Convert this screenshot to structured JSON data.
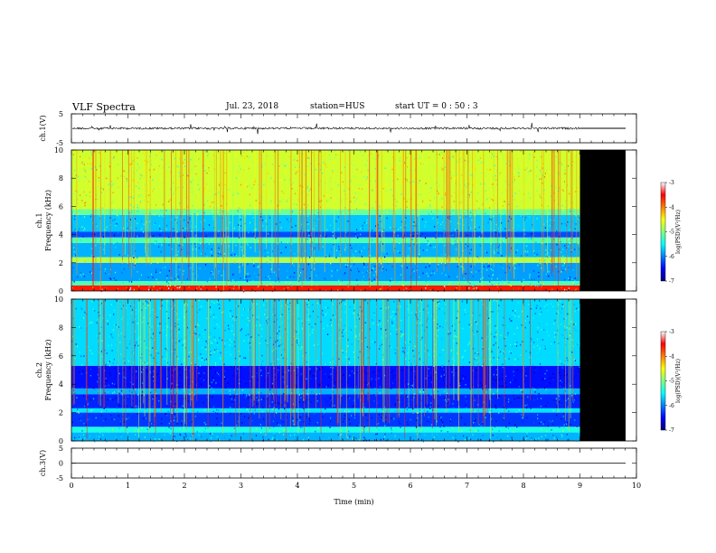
{
  "header": {
    "title": "VLF Spectra",
    "date": "Jul. 23, 2018",
    "station": "station=HUS",
    "start_ut": "start UT =  0 : 50 : 3"
  },
  "colors": {
    "cmap": [
      "#00007f",
      "#0000ff",
      "#0080ff",
      "#00ffff",
      "#80ff80",
      "#ffff00",
      "#ff8000",
      "#ff0000",
      "#ffffff"
    ],
    "nodata": "#000000"
  },
  "chart_data": [
    {
      "type": "line",
      "panel": "ch1-waveform",
      "ylabel": "ch.1(V)",
      "ylim": [
        -5,
        5
      ],
      "yticks": [
        "5",
        "-5"
      ],
      "xlim": [
        0,
        10
      ],
      "baseline": 0,
      "data_end_min": 9.0,
      "after_end_value": 0
    },
    {
      "type": "heatmap",
      "panel": "ch1-spectrogram",
      "ylabel": "ch.1\nFrequency (kHz)",
      "ylim": [
        0,
        10
      ],
      "yticks": [
        "0",
        "2",
        "4",
        "6",
        "8",
        "10"
      ],
      "xlim": [
        0,
        10
      ],
      "data_end_min": 9.0,
      "colorbar": {
        "label": "log(PSD)(V²/Hz)",
        "range": [
          -7,
          -3
        ],
        "ticks": [
          "-3",
          "-4",
          "-5",
          "-6",
          "-7"
        ]
      },
      "bands_khz": [
        {
          "from": 0.0,
          "to": 0.4,
          "level": 0.85
        },
        {
          "from": 0.4,
          "to": 0.7,
          "level": 0.45
        },
        {
          "from": 0.7,
          "to": 2.0,
          "level": 0.28
        },
        {
          "from": 2.0,
          "to": 2.4,
          "level": 0.55
        },
        {
          "from": 2.4,
          "to": 3.4,
          "level": 0.3
        },
        {
          "from": 3.4,
          "to": 3.8,
          "level": 0.45
        },
        {
          "from": 3.8,
          "to": 4.2,
          "level": 0.2
        },
        {
          "from": 4.2,
          "to": 5.4,
          "level": 0.32
        },
        {
          "from": 5.4,
          "to": 5.8,
          "level": 0.48
        },
        {
          "from": 5.8,
          "to": 10.0,
          "level": 0.58
        }
      ]
    },
    {
      "type": "heatmap",
      "panel": "ch2-spectrogram",
      "ylabel": "ch.2\nFrequency (kHz)",
      "ylim": [
        0,
        10
      ],
      "yticks": [
        "0",
        "2",
        "4",
        "6",
        "8",
        "10"
      ],
      "xlim": [
        0,
        10
      ],
      "data_end_min": 9.0,
      "colorbar": {
        "label": "log(PSD)(V²/Hz)",
        "range": [
          -7,
          -3
        ],
        "ticks": [
          "-3",
          "-4",
          "-5",
          "-6",
          "-7"
        ]
      },
      "bands_khz": [
        {
          "from": 0.0,
          "to": 0.6,
          "level": 0.3
        },
        {
          "from": 0.6,
          "to": 1.0,
          "level": 0.4
        },
        {
          "from": 1.0,
          "to": 2.0,
          "level": 0.18
        },
        {
          "from": 2.0,
          "to": 2.3,
          "level": 0.35
        },
        {
          "from": 2.3,
          "to": 3.3,
          "level": 0.16
        },
        {
          "from": 3.3,
          "to": 3.7,
          "level": 0.3
        },
        {
          "from": 3.7,
          "to": 5.3,
          "level": 0.14
        },
        {
          "from": 5.3,
          "to": 10.0,
          "level": 0.34
        }
      ]
    },
    {
      "type": "line",
      "panel": "ch3-waveform",
      "ylabel": "ch.3(V)",
      "ylim": [
        -5,
        5
      ],
      "yticks": [
        "5",
        "0",
        "-5"
      ],
      "xlim": [
        0,
        10
      ],
      "baseline": 0,
      "xlabel": "Time (min)",
      "xticks": [
        "0",
        "1",
        "2",
        "3",
        "4",
        "5",
        "6",
        "7",
        "8",
        "9",
        "10"
      ]
    }
  ]
}
